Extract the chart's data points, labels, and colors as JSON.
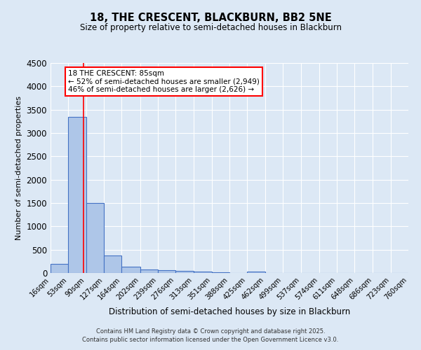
{
  "title": "18, THE CRESCENT, BLACKBURN, BB2 5NE",
  "subtitle": "Size of property relative to semi-detached houses in Blackburn",
  "xlabel": "Distribution of semi-detached houses by size in Blackburn",
  "ylabel": "Number of semi-detached properties",
  "bins": [
    "16sqm",
    "53sqm",
    "90sqm",
    "127sqm",
    "164sqm",
    "202sqm",
    "239sqm",
    "276sqm",
    "313sqm",
    "351sqm",
    "388sqm",
    "425sqm",
    "462sqm",
    "499sqm",
    "537sqm",
    "574sqm",
    "611sqm",
    "648sqm",
    "686sqm",
    "723sqm",
    "760sqm"
  ],
  "bin_edges": [
    16,
    53,
    90,
    127,
    164,
    202,
    239,
    276,
    313,
    351,
    388,
    425,
    462,
    499,
    537,
    574,
    611,
    648,
    686,
    723,
    760
  ],
  "bar_heights": [
    200,
    3350,
    1500,
    380,
    140,
    80,
    55,
    40,
    25,
    20,
    0,
    30,
    0,
    0,
    0,
    0,
    0,
    0,
    0,
    0
  ],
  "bar_color": "#aec6e8",
  "bar_edge_color": "#4472c4",
  "property_size": 85,
  "red_line_color": "#ff0000",
  "annotation_line1": "18 THE CRESCENT: 85sqm",
  "annotation_line2": "← 52% of semi-detached houses are smaller (2,949)",
  "annotation_line3": "46% of semi-detached houses are larger (2,626) →",
  "annotation_box_color": "#ff0000",
  "ylim": [
    0,
    4500
  ],
  "yticks": [
    0,
    500,
    1000,
    1500,
    2000,
    2500,
    3000,
    3500,
    4000,
    4500
  ],
  "background_color": "#dce8f5",
  "grid_color": "#ffffff",
  "footer_line1": "Contains HM Land Registry data © Crown copyright and database right 2025.",
  "footer_line2": "Contains public sector information licensed under the Open Government Licence v3.0."
}
